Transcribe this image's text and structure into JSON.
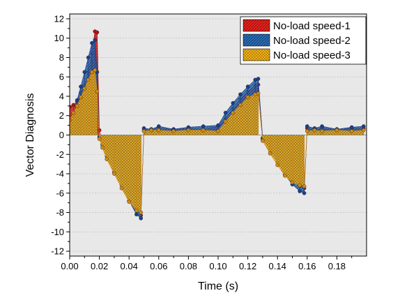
{
  "chart_data": {
    "type": "line",
    "title": "",
    "xlabel": "Time (s)",
    "ylabel": "Vector Diagnosis",
    "xlim": [
      0,
      0.2
    ],
    "ylim": [
      -12.5,
      12.5
    ],
    "xticks": [
      "0.00",
      "0.02",
      "0.04",
      "0.06",
      "0.08",
      "0.10",
      "0.12",
      "0.14",
      "0.16",
      "0.18"
    ],
    "yticks": [
      "12",
      "10",
      "8",
      "6",
      "4",
      "2",
      "0",
      "-2",
      "-4",
      "-6",
      "-8",
      "-10",
      "-12"
    ],
    "grid": true,
    "legend_position": "top-right",
    "style": "stems drawn from y=0 with hatched fill under each series, dot markers",
    "series": [
      {
        "name": "No-load speed-1",
        "color": "#e8231e",
        "marker_color": "#b01414",
        "points": [
          [
            0.0,
            2.9
          ],
          [
            0.0025,
            3.1
          ],
          [
            0.005,
            3.5
          ],
          [
            0.0075,
            4.4
          ],
          [
            0.01,
            5.1
          ],
          [
            0.0125,
            6.5
          ],
          [
            0.015,
            8.4
          ],
          [
            0.017,
            10.7
          ],
          [
            0.0185,
            10.6
          ],
          [
            0.02,
            0.5
          ],
          [
            0.022,
            -0.6
          ],
          [
            0.025,
            -1.5
          ],
          [
            0.03,
            -2.8
          ],
          [
            0.035,
            -4.4
          ],
          [
            0.04,
            -5.9
          ],
          [
            0.045,
            -7.5
          ],
          [
            0.048,
            -8.3
          ],
          [
            0.05,
            0.5
          ],
          [
            0.055,
            0.6
          ],
          [
            0.06,
            0.7
          ],
          [
            0.07,
            0.6
          ],
          [
            0.08,
            0.7
          ],
          [
            0.09,
            0.6
          ],
          [
            0.1,
            0.9
          ],
          [
            0.105,
            1.7
          ],
          [
            0.11,
            2.7
          ],
          [
            0.115,
            3.7
          ],
          [
            0.12,
            4.5
          ],
          [
            0.125,
            5.1
          ],
          [
            0.127,
            5.2
          ],
          [
            0.13,
            -0.4
          ],
          [
            0.135,
            -1.4
          ],
          [
            0.14,
            -2.5
          ],
          [
            0.145,
            -3.7
          ],
          [
            0.15,
            -4.7
          ],
          [
            0.155,
            -5.3
          ],
          [
            0.158,
            -5.5
          ],
          [
            0.16,
            0.7
          ],
          [
            0.165,
            0.6
          ],
          [
            0.17,
            0.7
          ],
          [
            0.18,
            0.6
          ],
          [
            0.19,
            0.7
          ],
          [
            0.198,
            0.7
          ]
        ]
      },
      {
        "name": "No-load speed-2",
        "color": "#2b6fb8",
        "marker_color": "#1a3f8a",
        "points": [
          [
            0.0,
            0.3
          ],
          [
            0.0025,
            2.0
          ],
          [
            0.005,
            3.6
          ],
          [
            0.0075,
            5.0
          ],
          [
            0.01,
            6.5
          ],
          [
            0.0125,
            8.0
          ],
          [
            0.015,
            9.5
          ],
          [
            0.017,
            9.8
          ],
          [
            0.0185,
            6.5
          ],
          [
            0.02,
            -0.2
          ],
          [
            0.022,
            -1.0
          ],
          [
            0.025,
            -2.2
          ],
          [
            0.03,
            -3.8
          ],
          [
            0.035,
            -5.2
          ],
          [
            0.04,
            -6.8
          ],
          [
            0.045,
            -8.2
          ],
          [
            0.048,
            -8.6
          ],
          [
            0.05,
            0.7
          ],
          [
            0.055,
            0.6
          ],
          [
            0.06,
            0.9
          ],
          [
            0.07,
            0.6
          ],
          [
            0.08,
            0.8
          ],
          [
            0.09,
            0.9
          ],
          [
            0.1,
            1.0
          ],
          [
            0.105,
            2.3
          ],
          [
            0.11,
            3.3
          ],
          [
            0.115,
            4.2
          ],
          [
            0.12,
            5.0
          ],
          [
            0.125,
            5.7
          ],
          [
            0.127,
            5.8
          ],
          [
            0.13,
            -0.3
          ],
          [
            0.135,
            -1.6
          ],
          [
            0.14,
            -2.8
          ],
          [
            0.145,
            -4.1
          ],
          [
            0.15,
            -5.1
          ],
          [
            0.155,
            -5.8
          ],
          [
            0.158,
            -6.0
          ],
          [
            0.16,
            0.9
          ],
          [
            0.165,
            0.7
          ],
          [
            0.17,
            0.9
          ],
          [
            0.18,
            0.6
          ],
          [
            0.19,
            0.8
          ],
          [
            0.198,
            0.9
          ]
        ]
      },
      {
        "name": "No-load speed-3",
        "color": "#f2c01a",
        "marker_color": "#d08a10",
        "points": [
          [
            0.0,
            1.5
          ],
          [
            0.0025,
            2.3
          ],
          [
            0.005,
            3.0
          ],
          [
            0.0075,
            3.9
          ],
          [
            0.01,
            4.8
          ],
          [
            0.0125,
            5.7
          ],
          [
            0.015,
            6.5
          ],
          [
            0.017,
            6.7
          ],
          [
            0.0185,
            4.5
          ],
          [
            0.02,
            -0.4
          ],
          [
            0.022,
            -1.3
          ],
          [
            0.025,
            -2.5
          ],
          [
            0.03,
            -4.0
          ],
          [
            0.035,
            -5.5
          ],
          [
            0.04,
            -6.9
          ],
          [
            0.045,
            -7.8
          ],
          [
            0.048,
            -8.0
          ],
          [
            0.05,
            0.4
          ],
          [
            0.055,
            0.5
          ],
          [
            0.06,
            0.5
          ],
          [
            0.07,
            0.4
          ],
          [
            0.08,
            0.5
          ],
          [
            0.09,
            0.5
          ],
          [
            0.1,
            0.4
          ],
          [
            0.105,
            1.4
          ],
          [
            0.11,
            2.3
          ],
          [
            0.115,
            3.1
          ],
          [
            0.12,
            3.9
          ],
          [
            0.125,
            4.2
          ],
          [
            0.127,
            4.3
          ],
          [
            0.13,
            -0.6
          ],
          [
            0.135,
            -1.9
          ],
          [
            0.14,
            -3.1
          ],
          [
            0.145,
            -4.2
          ],
          [
            0.15,
            -4.9
          ],
          [
            0.155,
            -5.2
          ],
          [
            0.158,
            -5.3
          ],
          [
            0.16,
            0.4
          ],
          [
            0.165,
            0.5
          ],
          [
            0.17,
            0.4
          ],
          [
            0.18,
            0.5
          ],
          [
            0.19,
            0.4
          ],
          [
            0.198,
            0.5
          ]
        ]
      }
    ]
  }
}
